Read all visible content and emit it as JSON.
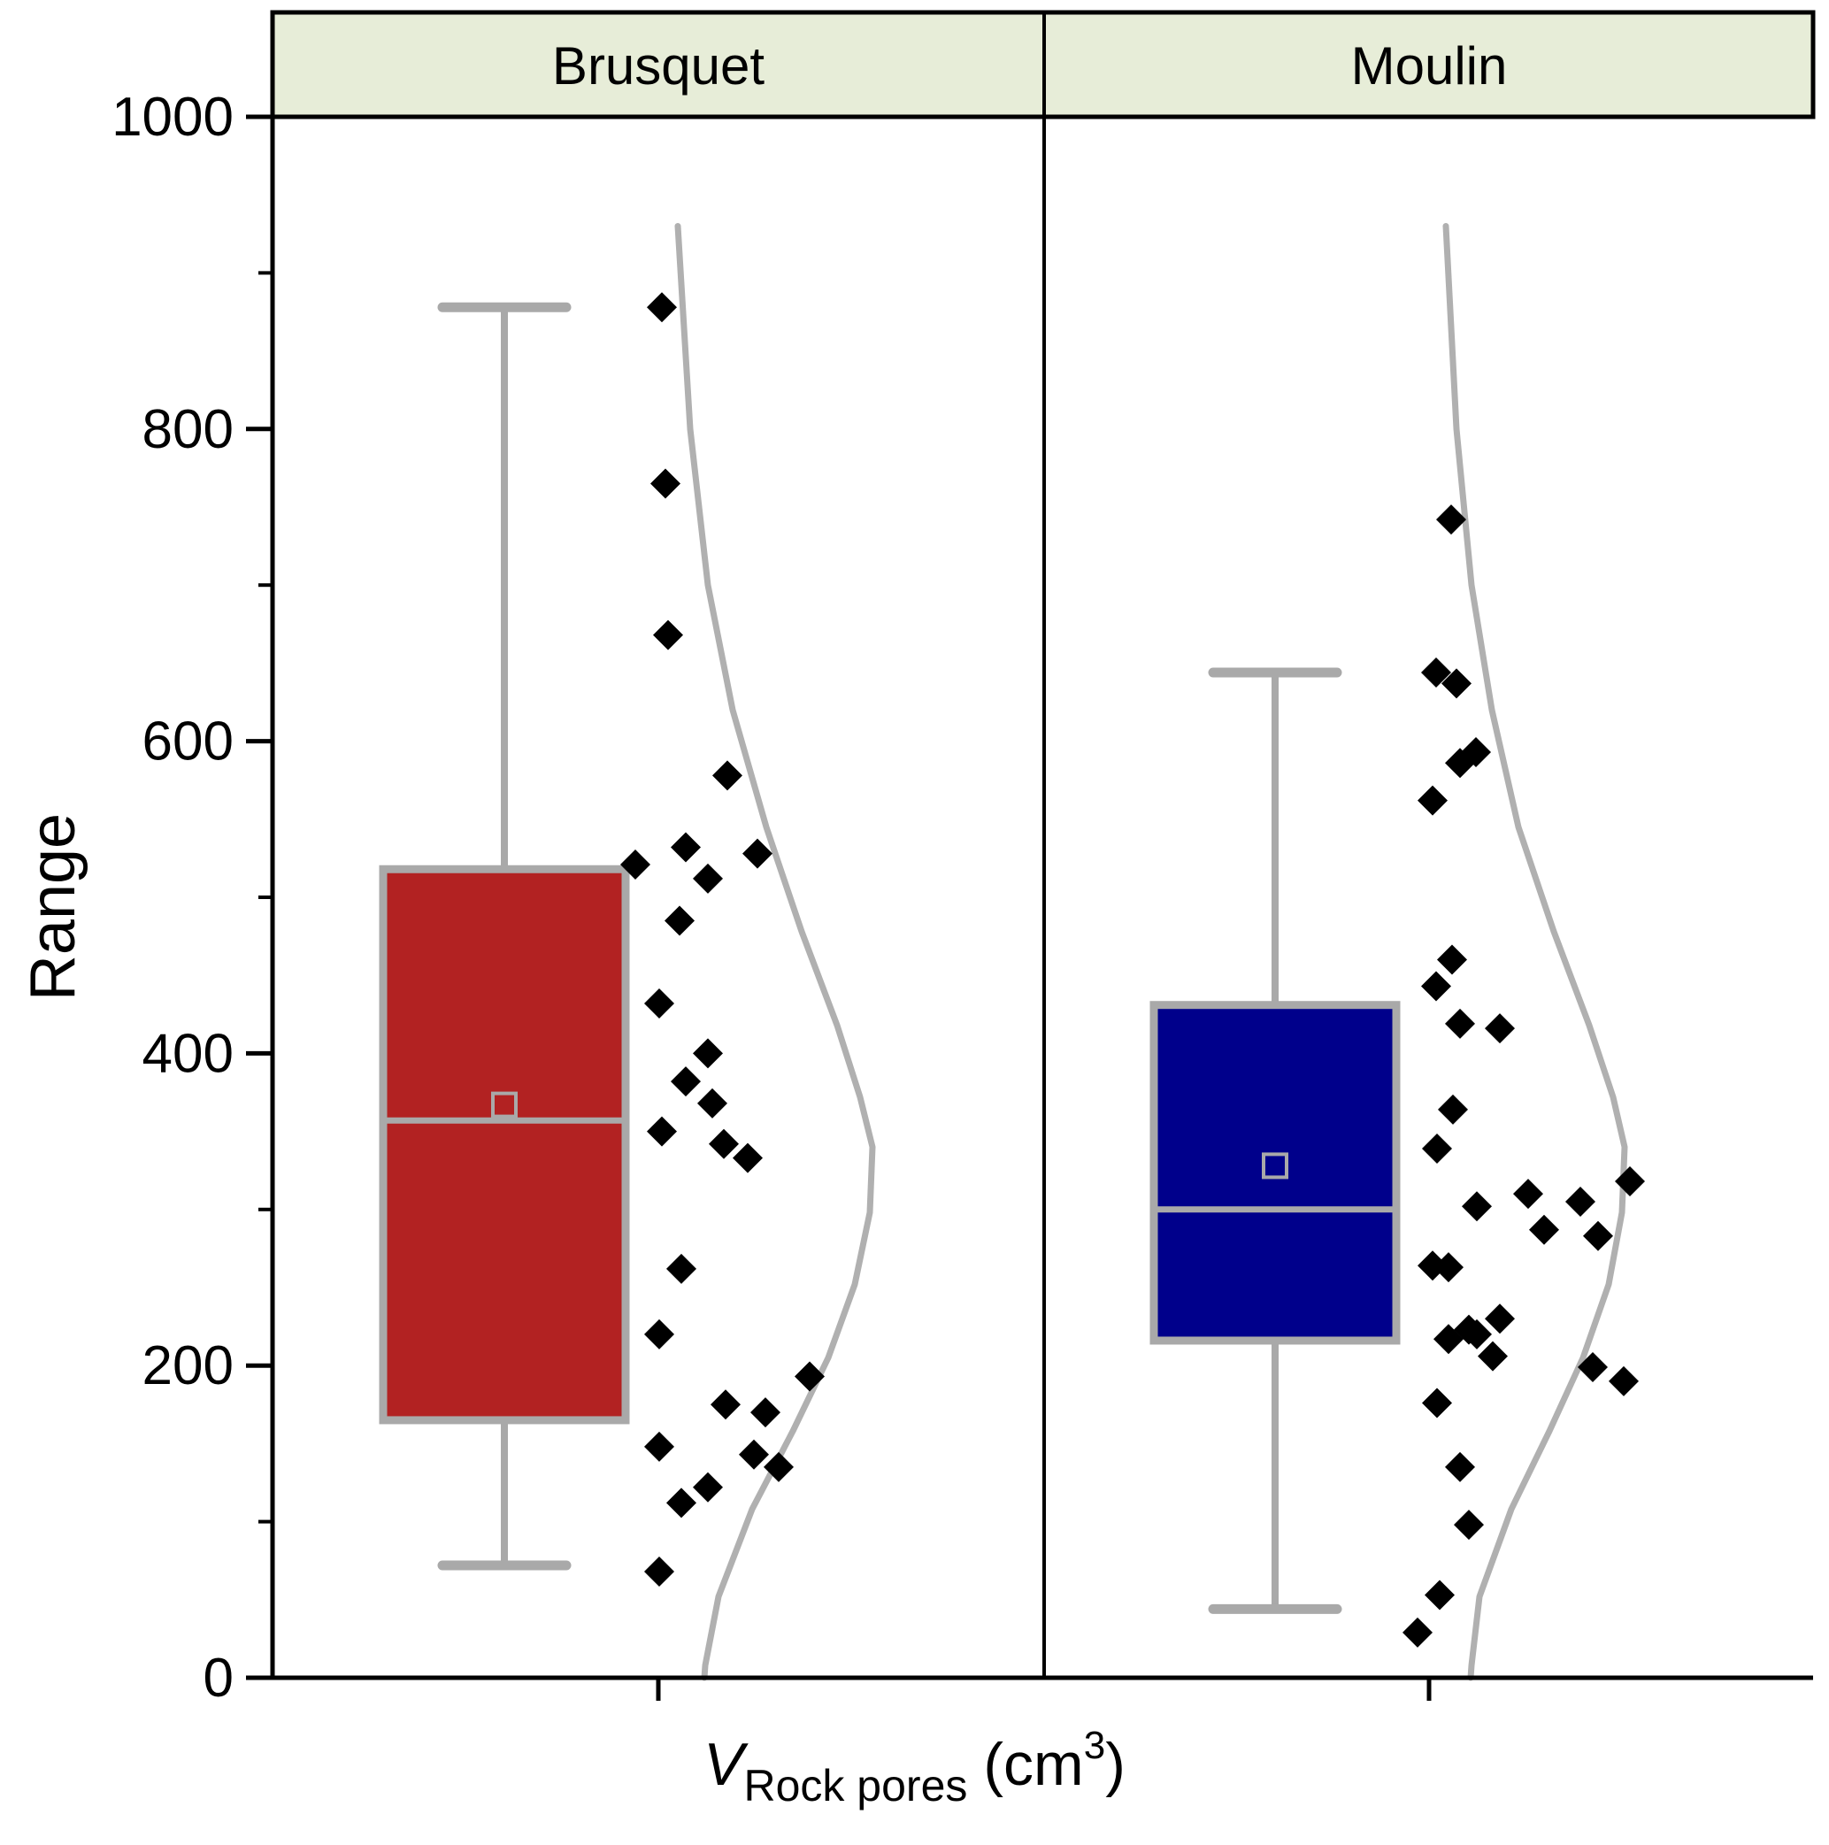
{
  "y_axis": {
    "title": "Range",
    "min": 0,
    "max": 1000,
    "ticks": [
      0,
      200,
      400,
      600,
      800,
      1000
    ],
    "minor_step": 100
  },
  "x_axis": {
    "variable": "V",
    "variable_subscript": "Rock pores",
    "unit_open": "(",
    "unit_base": "cm",
    "unit_exponent": "3",
    "unit_close": ")"
  },
  "colors": {
    "header_fill": "#e7edd8",
    "frame": "#000000",
    "box_stroke": "#a9a9a9",
    "whisker_stroke": "#a9a9a9",
    "violin_stroke": "#b0b0b0",
    "point_fill": "#000000",
    "brusquet_fill": "#b22222",
    "moulin_fill": "#00008b"
  },
  "chart_data": [
    {
      "type": "box+scatter+violin",
      "group": "Brusquet",
      "fill": "#b22222",
      "stats": {
        "whisker_low": 72,
        "q1": 165,
        "median": 357,
        "mean": 367,
        "q3": 518,
        "whisker_high": 878
      },
      "points_x_value": [
        [
          748,
          878
        ],
        [
          752,
          765
        ],
        [
          755,
          668
        ],
        [
          822,
          578
        ],
        [
          718,
          521
        ],
        [
          775,
          532
        ],
        [
          856,
          528
        ],
        [
          800,
          512
        ],
        [
          768,
          485
        ],
        [
          745,
          432
        ],
        [
          800,
          400
        ],
        [
          775,
          382
        ],
        [
          805,
          368
        ],
        [
          748,
          350
        ],
        [
          818,
          342
        ],
        [
          845,
          333
        ],
        [
          770,
          262
        ],
        [
          745,
          220
        ],
        [
          915,
          193
        ],
        [
          820,
          175
        ],
        [
          865,
          170
        ],
        [
          745,
          148
        ],
        [
          852,
          143
        ],
        [
          880,
          135
        ],
        [
          800,
          122
        ],
        [
          770,
          112
        ],
        [
          745,
          68
        ]
      ],
      "violin_x_value": [
        [
          766,
          930
        ],
        [
          780,
          800
        ],
        [
          800,
          700
        ],
        [
          828,
          620
        ],
        [
          866,
          545
        ],
        [
          906,
          478
        ],
        [
          946,
          418
        ],
        [
          972,
          372
        ],
        [
          986,
          340
        ],
        [
          983,
          298
        ],
        [
          966,
          252
        ],
        [
          936,
          205
        ],
        [
          896,
          158
        ],
        [
          850,
          108
        ],
        [
          812,
          52
        ],
        [
          797,
          8
        ],
        [
          796,
          0
        ]
      ]
    },
    {
      "type": "box+scatter+violin",
      "group": "Moulin",
      "fill": "#00008b",
      "stats": {
        "whisker_low": 44,
        "q1": 216,
        "median": 300,
        "mean": 328,
        "q3": 431,
        "whisker_high": 644
      },
      "points_x_value": [
        [
          1640,
          742
        ],
        [
          1623,
          644
        ],
        [
          1646,
          637
        ],
        [
          1668,
          593
        ],
        [
          1650,
          586
        ],
        [
          1619,
          562
        ],
        [
          1641,
          460
        ],
        [
          1623,
          443
        ],
        [
          1650,
          419
        ],
        [
          1695,
          416
        ],
        [
          1642,
          364
        ],
        [
          1624,
          339
        ],
        [
          1669,
          302
        ],
        [
          1727,
          310
        ],
        [
          1786,
          305
        ],
        [
          1842,
          318
        ],
        [
          1745,
          287
        ],
        [
          1806,
          283
        ],
        [
          1619,
          264
        ],
        [
          1637,
          263
        ],
        [
          1695,
          230
        ],
        [
          1660,
          223
        ],
        [
          1669,
          220
        ],
        [
          1637,
          217
        ],
        [
          1687,
          206
        ],
        [
          1800,
          199
        ],
        [
          1835,
          190
        ],
        [
          1624,
          176
        ],
        [
          1650,
          135
        ],
        [
          1660,
          98
        ],
        [
          1627,
          53
        ],
        [
          1602,
          29
        ]
      ],
      "violin_x_value": [
        [
          1634,
          930
        ],
        [
          1646,
          800
        ],
        [
          1663,
          700
        ],
        [
          1686,
          620
        ],
        [
          1716,
          545
        ],
        [
          1756,
          478
        ],
        [
          1796,
          418
        ],
        [
          1823,
          372
        ],
        [
          1836,
          340
        ],
        [
          1833,
          298
        ],
        [
          1818,
          252
        ],
        [
          1789,
          205
        ],
        [
          1751,
          158
        ],
        [
          1708,
          108
        ],
        [
          1672,
          52
        ],
        [
          1663,
          8
        ],
        [
          1662,
          0
        ]
      ]
    }
  ]
}
